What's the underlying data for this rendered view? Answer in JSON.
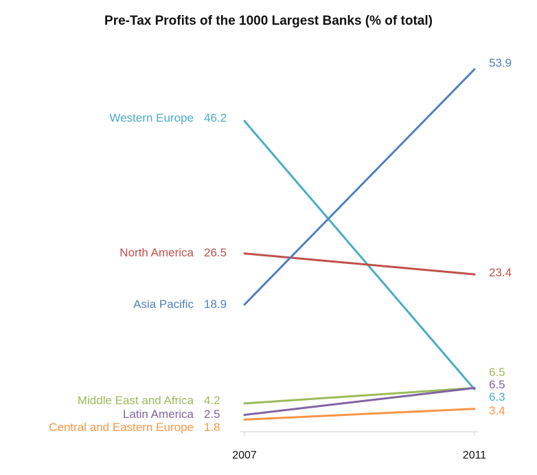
{
  "chart_data": {
    "type": "line",
    "title": "Pre-Tax Profits of the 1000 Largest Banks (% of total)",
    "xlabel": "",
    "ylabel": "",
    "x": [
      "2007",
      "2011"
    ],
    "ylim": [
      0,
      55
    ],
    "grid": false,
    "legend": "none (series labelled at left end)",
    "series": [
      {
        "name": "Western Europe",
        "values": [
          46.2,
          6.3
        ],
        "color": "#4bacc6"
      },
      {
        "name": "North America",
        "values": [
          26.5,
          23.4
        ],
        "color": "#c0504d"
      },
      {
        "name": "Asia Pacific",
        "values": [
          18.9,
          53.9
        ],
        "color": "#4f81bd"
      },
      {
        "name": "Middle East and Africa",
        "values": [
          4.2,
          6.5
        ],
        "color": "#9bbb59"
      },
      {
        "name": "Latin America",
        "values": [
          2.5,
          6.5
        ],
        "color": "#8064a2"
      },
      {
        "name": "Central and Eastern Europe",
        "values": [
          1.8,
          3.4
        ],
        "color": "#f79646"
      }
    ],
    "left_labels": [
      {
        "text": "Western Europe",
        "value_text": "46.2"
      },
      {
        "text": "North America",
        "value_text": "26.5"
      },
      {
        "text": "Asia Pacific",
        "value_text": "18.9"
      },
      {
        "text": "Middle East and Africa",
        "value_text": "4.2"
      },
      {
        "text": "Latin America",
        "value_text": "2.5"
      },
      {
        "text": "Central and Eastern Europe",
        "value_text": "1.8"
      }
    ],
    "right_labels": [
      {
        "value_text": "53.9",
        "series": "Asia Pacific"
      },
      {
        "value_text": "23.4",
        "series": "North America"
      },
      {
        "value_text": "6.5",
        "series": "Middle East and Africa"
      },
      {
        "value_text": "6.5",
        "series": "Latin America"
      },
      {
        "value_text": "6.3",
        "series": "Western Europe"
      },
      {
        "value_text": "3.4",
        "series": "Central and Eastern Europe"
      }
    ]
  }
}
